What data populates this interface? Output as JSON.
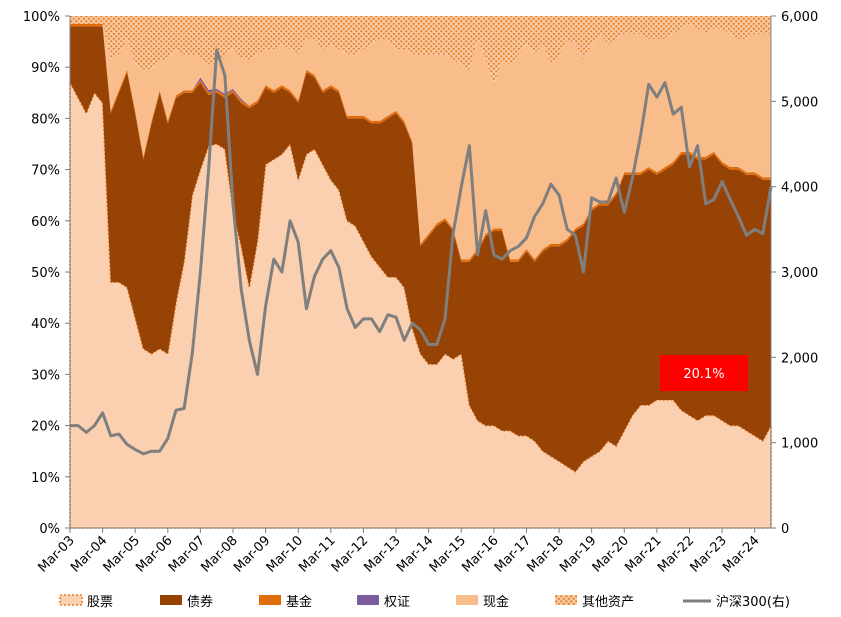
{
  "chart_data": {
    "type": "area",
    "stacked": true,
    "x": [
      "Mar-03",
      "Jun-03",
      "Sep-03",
      "Dec-03",
      "Mar-04",
      "Jun-04",
      "Sep-04",
      "Dec-04",
      "Mar-05",
      "Jun-05",
      "Sep-05",
      "Dec-05",
      "Mar-06",
      "Jun-06",
      "Sep-06",
      "Dec-06",
      "Mar-07",
      "Jun-07",
      "Sep-07",
      "Dec-07",
      "Mar-08",
      "Jun-08",
      "Sep-08",
      "Dec-08",
      "Mar-09",
      "Jun-09",
      "Sep-09",
      "Dec-09",
      "Mar-10",
      "Jun-10",
      "Sep-10",
      "Dec-10",
      "Mar-11",
      "Jun-11",
      "Sep-11",
      "Dec-11",
      "Mar-12",
      "Jun-12",
      "Sep-12",
      "Dec-12",
      "Mar-13",
      "Jun-13",
      "Sep-13",
      "Dec-13",
      "Mar-14",
      "Jun-14",
      "Sep-14",
      "Dec-14",
      "Mar-15",
      "Jun-15",
      "Sep-15",
      "Dec-15",
      "Mar-16",
      "Jun-16",
      "Sep-16",
      "Dec-16",
      "Mar-17",
      "Jun-17",
      "Sep-17",
      "Dec-17",
      "Mar-18",
      "Jun-18",
      "Sep-18",
      "Dec-18",
      "Mar-19",
      "Jun-19",
      "Sep-19",
      "Dec-19",
      "Mar-20",
      "Jun-20",
      "Sep-20",
      "Dec-20",
      "Mar-21",
      "Jun-21",
      "Sep-21",
      "Dec-21",
      "Mar-22",
      "Jun-22",
      "Sep-22",
      "Dec-22",
      "Mar-23",
      "Jun-23",
      "Sep-23",
      "Dec-23",
      "Mar-24",
      "Jun-24",
      "Sep-24"
    ],
    "x_tick_labels": [
      "Mar-03",
      "Mar-04",
      "Mar-05",
      "Mar-06",
      "Mar-07",
      "Mar-08",
      "Mar-09",
      "Mar-10",
      "Mar-11",
      "Mar-12",
      "Mar-13",
      "Mar-14",
      "Mar-15",
      "Mar-16",
      "Mar-17",
      "Mar-18",
      "Mar-19",
      "Mar-20",
      "Mar-21",
      "Mar-22",
      "Mar-23",
      "Mar-24"
    ],
    "series": [
      {
        "name": "股票",
        "values": [
          87,
          84,
          81,
          85,
          83,
          48,
          48,
          47,
          41,
          35,
          34,
          35,
          34,
          44,
          52,
          65,
          70,
          75,
          75,
          74,
          62,
          55,
          47,
          56,
          71,
          72,
          73,
          75,
          68,
          73,
          74,
          71,
          68,
          66,
          60,
          59,
          56,
          53,
          51,
          49,
          49,
          47,
          39,
          34,
          32,
          32,
          34,
          33,
          34,
          24,
          21,
          20,
          20,
          19,
          19,
          18,
          18,
          17,
          15,
          14,
          13,
          12,
          11,
          13,
          14,
          15,
          17,
          16,
          19,
          22,
          24,
          24,
          25,
          25,
          25,
          23,
          22,
          21,
          22,
          22,
          21,
          20,
          20,
          19,
          18,
          17,
          20
        ]
      },
      {
        "name": "债券",
        "values": [
          11,
          14,
          17,
          13,
          15,
          33,
          37,
          42,
          40,
          37,
          45,
          50,
          45,
          40,
          33,
          20,
          17,
          10,
          10,
          10,
          23,
          28,
          35,
          27,
          15,
          13,
          13,
          10,
          15,
          16,
          14,
          14,
          18,
          19,
          20,
          21,
          24,
          26,
          28,
          31,
          32,
          32,
          36,
          21,
          25,
          27,
          26,
          25,
          18,
          28,
          33,
          37,
          38,
          39,
          33,
          34,
          36,
          35,
          39,
          41,
          42,
          44,
          47,
          46,
          48,
          48,
          46,
          49,
          50,
          47,
          45,
          46,
          44,
          45,
          46,
          50,
          51,
          51,
          50,
          51,
          50,
          50,
          50,
          50,
          51,
          51,
          48
        ]
      },
      {
        "name": "基金",
        "values": [
          0.5,
          0.5,
          0.5,
          0.5,
          0.5,
          0.5,
          0.5,
          0.5,
          0.5,
          0.5,
          0.5,
          0.5,
          0.5,
          0.5,
          0.5,
          0.5,
          0.5,
          0.5,
          0.5,
          0.5,
          0.5,
          0.5,
          0.5,
          0.5,
          0.5,
          0.5,
          0.5,
          0.5,
          0.5,
          0.5,
          0.5,
          0.5,
          0.5,
          0.5,
          0.5,
          0.5,
          0.5,
          0.5,
          0.5,
          0.5,
          0.5,
          0.5,
          0.5,
          0.5,
          0.5,
          0.5,
          0.5,
          0.5,
          0.5,
          0.5,
          0.5,
          0.5,
          0.5,
          0.5,
          0.5,
          0.5,
          0.5,
          0.5,
          0.5,
          0.5,
          0.5,
          0.5,
          0.5,
          0.5,
          0.5,
          0.5,
          0.5,
          0.5,
          0.5,
          0.5,
          0.5,
          0.5,
          0.5,
          0.5,
          0.5,
          0.5,
          0.5,
          0.5,
          0.5,
          0.5,
          0.5,
          0.5,
          0.5,
          0.5,
          0.5,
          0.5,
          0.5
        ]
      },
      {
        "name": "权证",
        "values": [
          0,
          0,
          0,
          0,
          0,
          0,
          0,
          0,
          0,
          0,
          0,
          0,
          0,
          0,
          0,
          0,
          0.5,
          0.5,
          0.3,
          0.3,
          0.3,
          0.3,
          0,
          0,
          0,
          0,
          0,
          0,
          0,
          0,
          0,
          0,
          0,
          0,
          0,
          0,
          0,
          0,
          0,
          0,
          0,
          0,
          0,
          0,
          0,
          0,
          0,
          0,
          0,
          0,
          0,
          0,
          0,
          0,
          0,
          0,
          0,
          0,
          0,
          0,
          0,
          0,
          0,
          0,
          0,
          0,
          0,
          0,
          0,
          0,
          0,
          0,
          0,
          0,
          0,
          0,
          0,
          0,
          0,
          0,
          0,
          0,
          0,
          0,
          0,
          0,
          0
        ]
      },
      {
        "name": "现金",
        "values": [
          0,
          0,
          0,
          0,
          0,
          10,
          7,
          6,
          9,
          17,
          10,
          6,
          12,
          9,
          7,
          7,
          4,
          5,
          5,
          7,
          8,
          8,
          9,
          9,
          7,
          8,
          8,
          8,
          9,
          6,
          7,
          8,
          8,
          8,
          12,
          12,
          13,
          15,
          16,
          15,
          12,
          14,
          17,
          37,
          35,
          33,
          32,
          33,
          38,
          37,
          41,
          34,
          28,
          33,
          38,
          40,
          40,
          40,
          40,
          35,
          37,
          39,
          36,
          32,
          32,
          33,
          31,
          30,
          27,
          27,
          27,
          25,
          26,
          25,
          25,
          24,
          25,
          25,
          24,
          24,
          26,
          26,
          25,
          26,
          27,
          28,
          28
        ]
      },
      {
        "name": "其他资产",
        "values": [
          1.5,
          1.5,
          1.5,
          1.5,
          1.5,
          8.5,
          7.5,
          4.5,
          9.5,
          10.5,
          10.5,
          8.5,
          8.5,
          6.5,
          7.5,
          7.5,
          8,
          9.5,
          9.2,
          8.2,
          6.2,
          8.2,
          8.5,
          7.5,
          6.5,
          6.5,
          5.5,
          6.5,
          7.5,
          4.5,
          4.5,
          6.5,
          5.5,
          6.5,
          7.5,
          7.5,
          6.5,
          5.5,
          4.5,
          4.5,
          6.5,
          6.5,
          7.5,
          7.5,
          7.5,
          7.5,
          7.5,
          8.5,
          9.5,
          10.5,
          4.5,
          8.5,
          13.5,
          8.5,
          9.5,
          7.5,
          5.5,
          7.5,
          5.5,
          9.5,
          7.5,
          4.5,
          5.5,
          8.5,
          5.5,
          3.5,
          5.5,
          4.5,
          3.5,
          3.5,
          3.5,
          4.5,
          4.5,
          4.5,
          3.5,
          2.5,
          1.5,
          2.5,
          3.5,
          2.5,
          2.5,
          3.5,
          4.5,
          4.5,
          3.5,
          3.5,
          3.5
        ]
      },
      {
        "name": "沪深300(右)",
        "axis": "right",
        "type": "line",
        "values": [
          1200,
          1200,
          1120,
          1200,
          1350,
          1080,
          1100,
          980,
          920,
          870,
          900,
          900,
          1050,
          1380,
          1400,
          2050,
          3000,
          4200,
          5600,
          5300,
          3800,
          2800,
          2200,
          1800,
          2600,
          3150,
          3000,
          3600,
          3350,
          2570,
          2950,
          3150,
          3250,
          3050,
          2570,
          2350,
          2450,
          2450,
          2300,
          2500,
          2470,
          2200,
          2400,
          2320,
          2150,
          2150,
          2450,
          3450,
          4000,
          4480,
          3200,
          3720,
          3200,
          3150,
          3250,
          3300,
          3400,
          3650,
          3800,
          4030,
          3900,
          3500,
          3430,
          3000,
          3870,
          3820,
          3820,
          4100,
          3700,
          4100,
          4600,
          5200,
          5050,
          5220,
          4850,
          4930,
          4230,
          4480,
          3800,
          3850,
          4060,
          3850,
          3650,
          3430,
          3500,
          3450,
          4000
        ]
      }
    ],
    "y_left": {
      "min": 0,
      "max": 100,
      "ticks": [
        "0%",
        "10%",
        "20%",
        "30%",
        "40%",
        "50%",
        "60%",
        "70%",
        "80%",
        "90%",
        "100%"
      ]
    },
    "y_right": {
      "min": 0,
      "max": 6000,
      "ticks": [
        "0",
        "1,000",
        "2,000",
        "3,000",
        "4,000",
        "5,000",
        "6,000"
      ]
    },
    "colors": {
      "股票": "#fbd0b0",
      "债券": "#984306",
      "基金": "#e26b0a",
      "权证": "#7d5b9e",
      "现金": "#f9bd8c",
      "其他资产": "#e77f25",
      "沪深300(右)": "#7f7f7f"
    },
    "callout": {
      "text": "20.1%",
      "color": "#ff0000"
    },
    "legend_position": "bottom",
    "grid": false
  }
}
